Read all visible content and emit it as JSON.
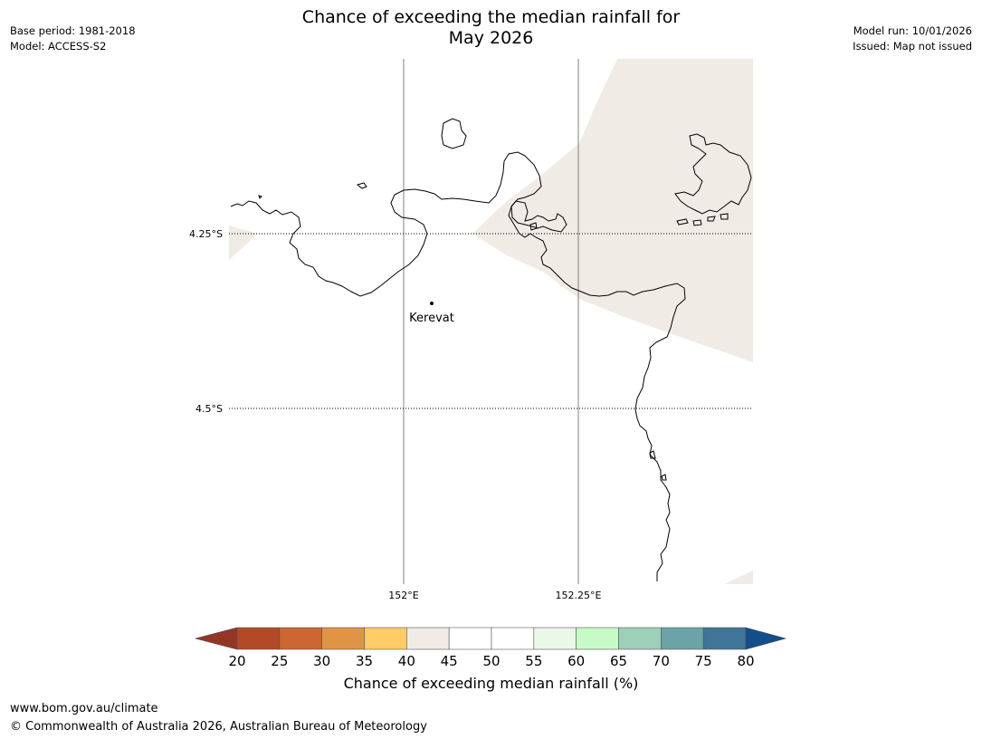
{
  "title": {
    "line1": "Chance of exceeding the median rainfall for",
    "line2": "May 2026"
  },
  "meta_left": {
    "base_period": "Base period: 1981-2018",
    "model": "Model: ACCESS-S2"
  },
  "meta_right": {
    "model_run": "Model run: 10/01/2026",
    "issued": "Issued: Map not issued"
  },
  "map": {
    "lat_labels": [
      "4.25°S",
      "4.5°S"
    ],
    "lon_labels": [
      "152°E",
      "152.25°E"
    ],
    "place": {
      "name": "Kerevat"
    },
    "land_color": "#ffffff",
    "shade_color": "#f0ebe4",
    "coast_color": "#000000"
  },
  "colorbar": {
    "label": "Chance of exceeding median rainfall (%)",
    "ticks": [
      "20",
      "25",
      "30",
      "35",
      "40",
      "45",
      "50",
      "55",
      "60",
      "65",
      "70",
      "75",
      "80"
    ],
    "under_color": "#943626",
    "over_color": "#144e8a",
    "colors": [
      "#b34a27",
      "#cc6633",
      "#e09545",
      "#ffcc66",
      "#f0ebe4",
      "#ffffff",
      "#ffffff",
      "#eaf8e8",
      "#c8fac8",
      "#9dcfb9",
      "#6ba3a7",
      "#3f7597"
    ]
  },
  "footer": {
    "url": "www.bom.gov.au/climate",
    "copyright": "© Commonwealth of Australia 2026, Australian Bureau of Meteorology"
  }
}
